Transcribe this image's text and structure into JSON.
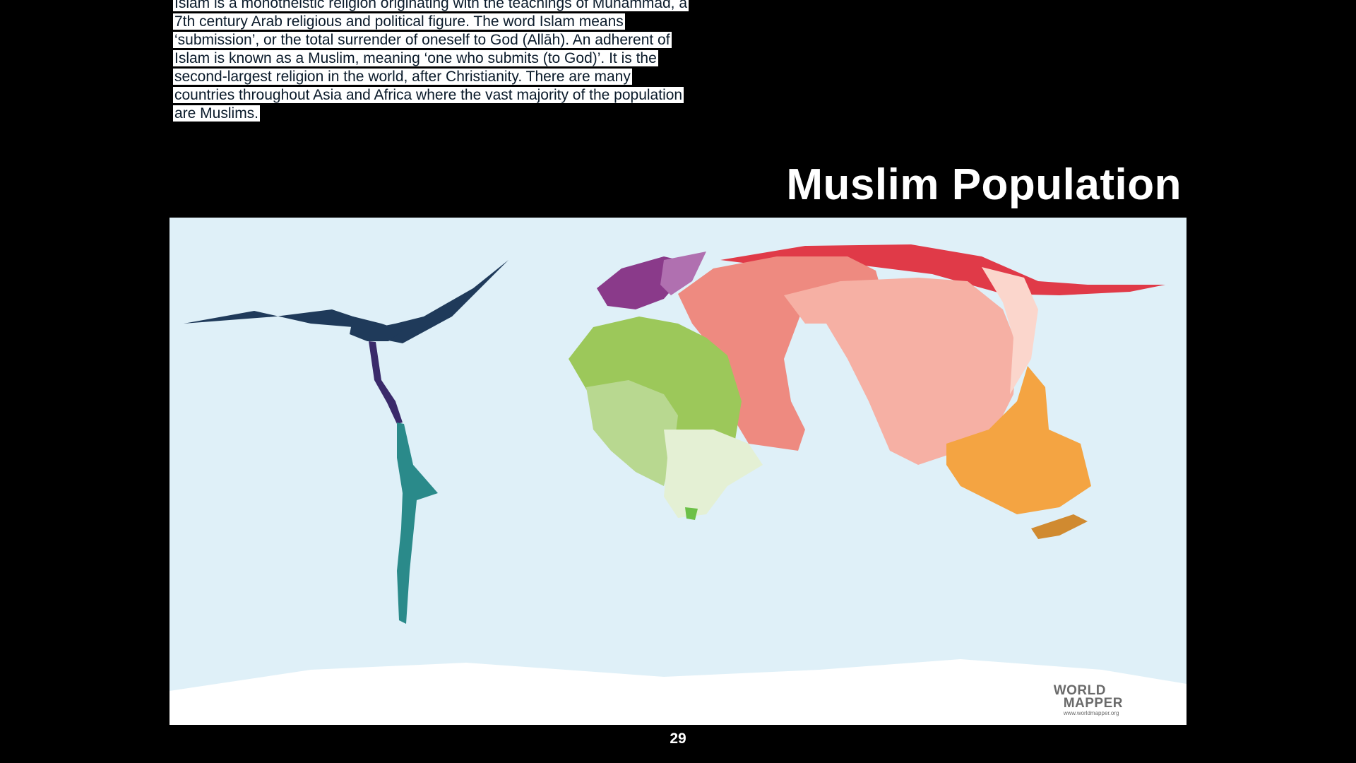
{
  "intro": {
    "lines": [
      "Islam is a monotheistic religion originating with the teachings of Muhammad, a",
      "7th century Arab religious and political figure. The word Islam means",
      "‘submission’, or the total surrender of oneself to God (Allāh). An adherent of",
      "Islam is known as a Muslim, meaning ‘one who submits (to God)’. It is the",
      "second-largest religion in the world, after Christianity. There are many",
      "countries throughout Asia and Africa where the vast majority of the population",
      "are Muslims."
    ]
  },
  "title": "Muslim Population",
  "map": {
    "logo_line1": "WORLD",
    "logo_line2": "MAPPER",
    "logo_url": "www.worldmapper.org",
    "colors": {
      "ocean": "#dff0f8",
      "americas": "#1f3a5a",
      "south_america": "#2a8a8a",
      "europe": "#8a3a8a",
      "africa_north": "#9cc85a",
      "africa_central": "#b8d890",
      "africa_south": "#e4f0d4",
      "middle_east": "#ee8a80",
      "south_asia": "#f6b0a4",
      "russia": "#e03a48",
      "southeast_asia": "#f4a442",
      "antarctica": "#ffffff"
    }
  },
  "page_number": "29"
}
